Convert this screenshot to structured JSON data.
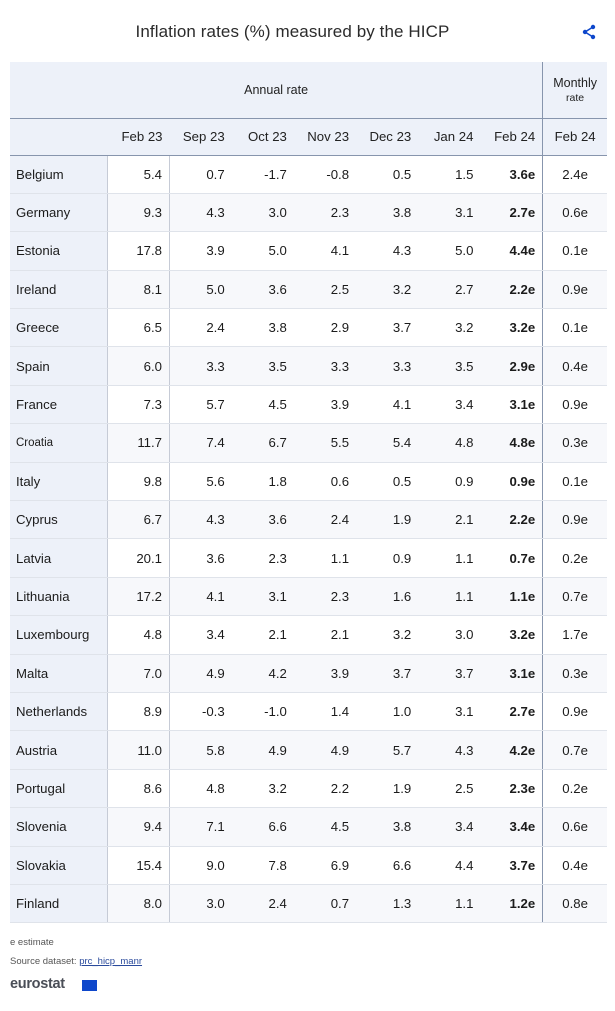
{
  "title": "Inflation rates (%) measured by the HICP",
  "icons": {
    "share": "share-icon"
  },
  "header": {
    "annual_label": "Annual rate",
    "monthly_label_line1": "Monthly",
    "monthly_label_line2": "rate",
    "columns": [
      "Feb 23",
      "Sep 23",
      "Oct 23",
      "Nov 23",
      "Dec 23",
      "Jan 24",
      "Feb 24",
      "Feb 24"
    ]
  },
  "rows": [
    {
      "country": "Belgium",
      "values": [
        "5.4",
        "0.7",
        "-1.7",
        "-0.8",
        "0.5",
        "1.5",
        "3.6e"
      ],
      "monthly": "2.4e"
    },
    {
      "country": "Germany",
      "values": [
        "9.3",
        "4.3",
        "3.0",
        "2.3",
        "3.8",
        "3.1",
        "2.7e"
      ],
      "monthly": "0.6e"
    },
    {
      "country": "Estonia",
      "values": [
        "17.8",
        "3.9",
        "5.0",
        "4.1",
        "4.3",
        "5.0",
        "4.4e"
      ],
      "monthly": "0.1e"
    },
    {
      "country": "Ireland",
      "values": [
        "8.1",
        "5.0",
        "3.6",
        "2.5",
        "3.2",
        "2.7",
        "2.2e"
      ],
      "monthly": "0.9e"
    },
    {
      "country": "Greece",
      "values": [
        "6.5",
        "2.4",
        "3.8",
        "2.9",
        "3.7",
        "3.2",
        "3.2e"
      ],
      "monthly": "0.1e"
    },
    {
      "country": "Spain",
      "values": [
        "6.0",
        "3.3",
        "3.5",
        "3.3",
        "3.3",
        "3.5",
        "2.9e"
      ],
      "monthly": "0.4e"
    },
    {
      "country": "France",
      "values": [
        "7.3",
        "5.7",
        "4.5",
        "3.9",
        "4.1",
        "3.4",
        "3.1e"
      ],
      "monthly": "0.9e"
    },
    {
      "country": "Croatia",
      "values": [
        "11.7",
        "7.4",
        "6.7",
        "5.5",
        "5.4",
        "4.8",
        "4.8e"
      ],
      "monthly": "0.3e"
    },
    {
      "country": "Italy",
      "values": [
        "9.8",
        "5.6",
        "1.8",
        "0.6",
        "0.5",
        "0.9",
        "0.9e"
      ],
      "monthly": "0.1e"
    },
    {
      "country": "Cyprus",
      "values": [
        "6.7",
        "4.3",
        "3.6",
        "2.4",
        "1.9",
        "2.1",
        "2.2e"
      ],
      "monthly": "0.9e"
    },
    {
      "country": "Latvia",
      "values": [
        "20.1",
        "3.6",
        "2.3",
        "1.1",
        "0.9",
        "1.1",
        "0.7e"
      ],
      "monthly": "0.2e"
    },
    {
      "country": "Lithuania",
      "values": [
        "17.2",
        "4.1",
        "3.1",
        "2.3",
        "1.6",
        "1.1",
        "1.1e"
      ],
      "monthly": "0.7e"
    },
    {
      "country": "Luxembourg",
      "values": [
        "4.8",
        "3.4",
        "2.1",
        "2.1",
        "3.2",
        "3.0",
        "3.2e"
      ],
      "monthly": "1.7e"
    },
    {
      "country": "Malta",
      "values": [
        "7.0",
        "4.9",
        "4.2",
        "3.9",
        "3.7",
        "3.7",
        "3.1e"
      ],
      "monthly": "0.3e"
    },
    {
      "country": "Netherlands",
      "values": [
        "8.9",
        "-0.3",
        "-1.0",
        "1.4",
        "1.0",
        "3.1",
        "2.7e"
      ],
      "monthly": "0.9e"
    },
    {
      "country": "Austria",
      "values": [
        "11.0",
        "5.8",
        "4.9",
        "4.9",
        "5.7",
        "4.3",
        "4.2e"
      ],
      "monthly": "0.7e"
    },
    {
      "country": "Portugal",
      "values": [
        "8.6",
        "4.8",
        "3.2",
        "2.2",
        "1.9",
        "2.5",
        "2.3e"
      ],
      "monthly": "0.2e"
    },
    {
      "country": "Slovenia",
      "values": [
        "9.4",
        "7.1",
        "6.6",
        "4.5",
        "3.8",
        "3.4",
        "3.4e"
      ],
      "monthly": "0.6e"
    },
    {
      "country": "Slovakia",
      "values": [
        "15.4",
        "9.0",
        "7.8",
        "6.9",
        "6.6",
        "4.4",
        "3.7e"
      ],
      "monthly": "0.4e"
    },
    {
      "country": "Finland",
      "values": [
        "8.0",
        "3.0",
        "2.4",
        "0.7",
        "1.3",
        "1.1",
        "1.2e"
      ],
      "monthly": "0.8e"
    }
  ],
  "footer": {
    "note": "e estimate",
    "source_label": "Source dataset:",
    "source_link": "prc_hicp_manr",
    "logo": "eurostat"
  },
  "colors": {
    "header_bg": "#edf1f9",
    "border": "#8795ad",
    "link": "#2a4a9c",
    "flag": "#0e47cb"
  }
}
